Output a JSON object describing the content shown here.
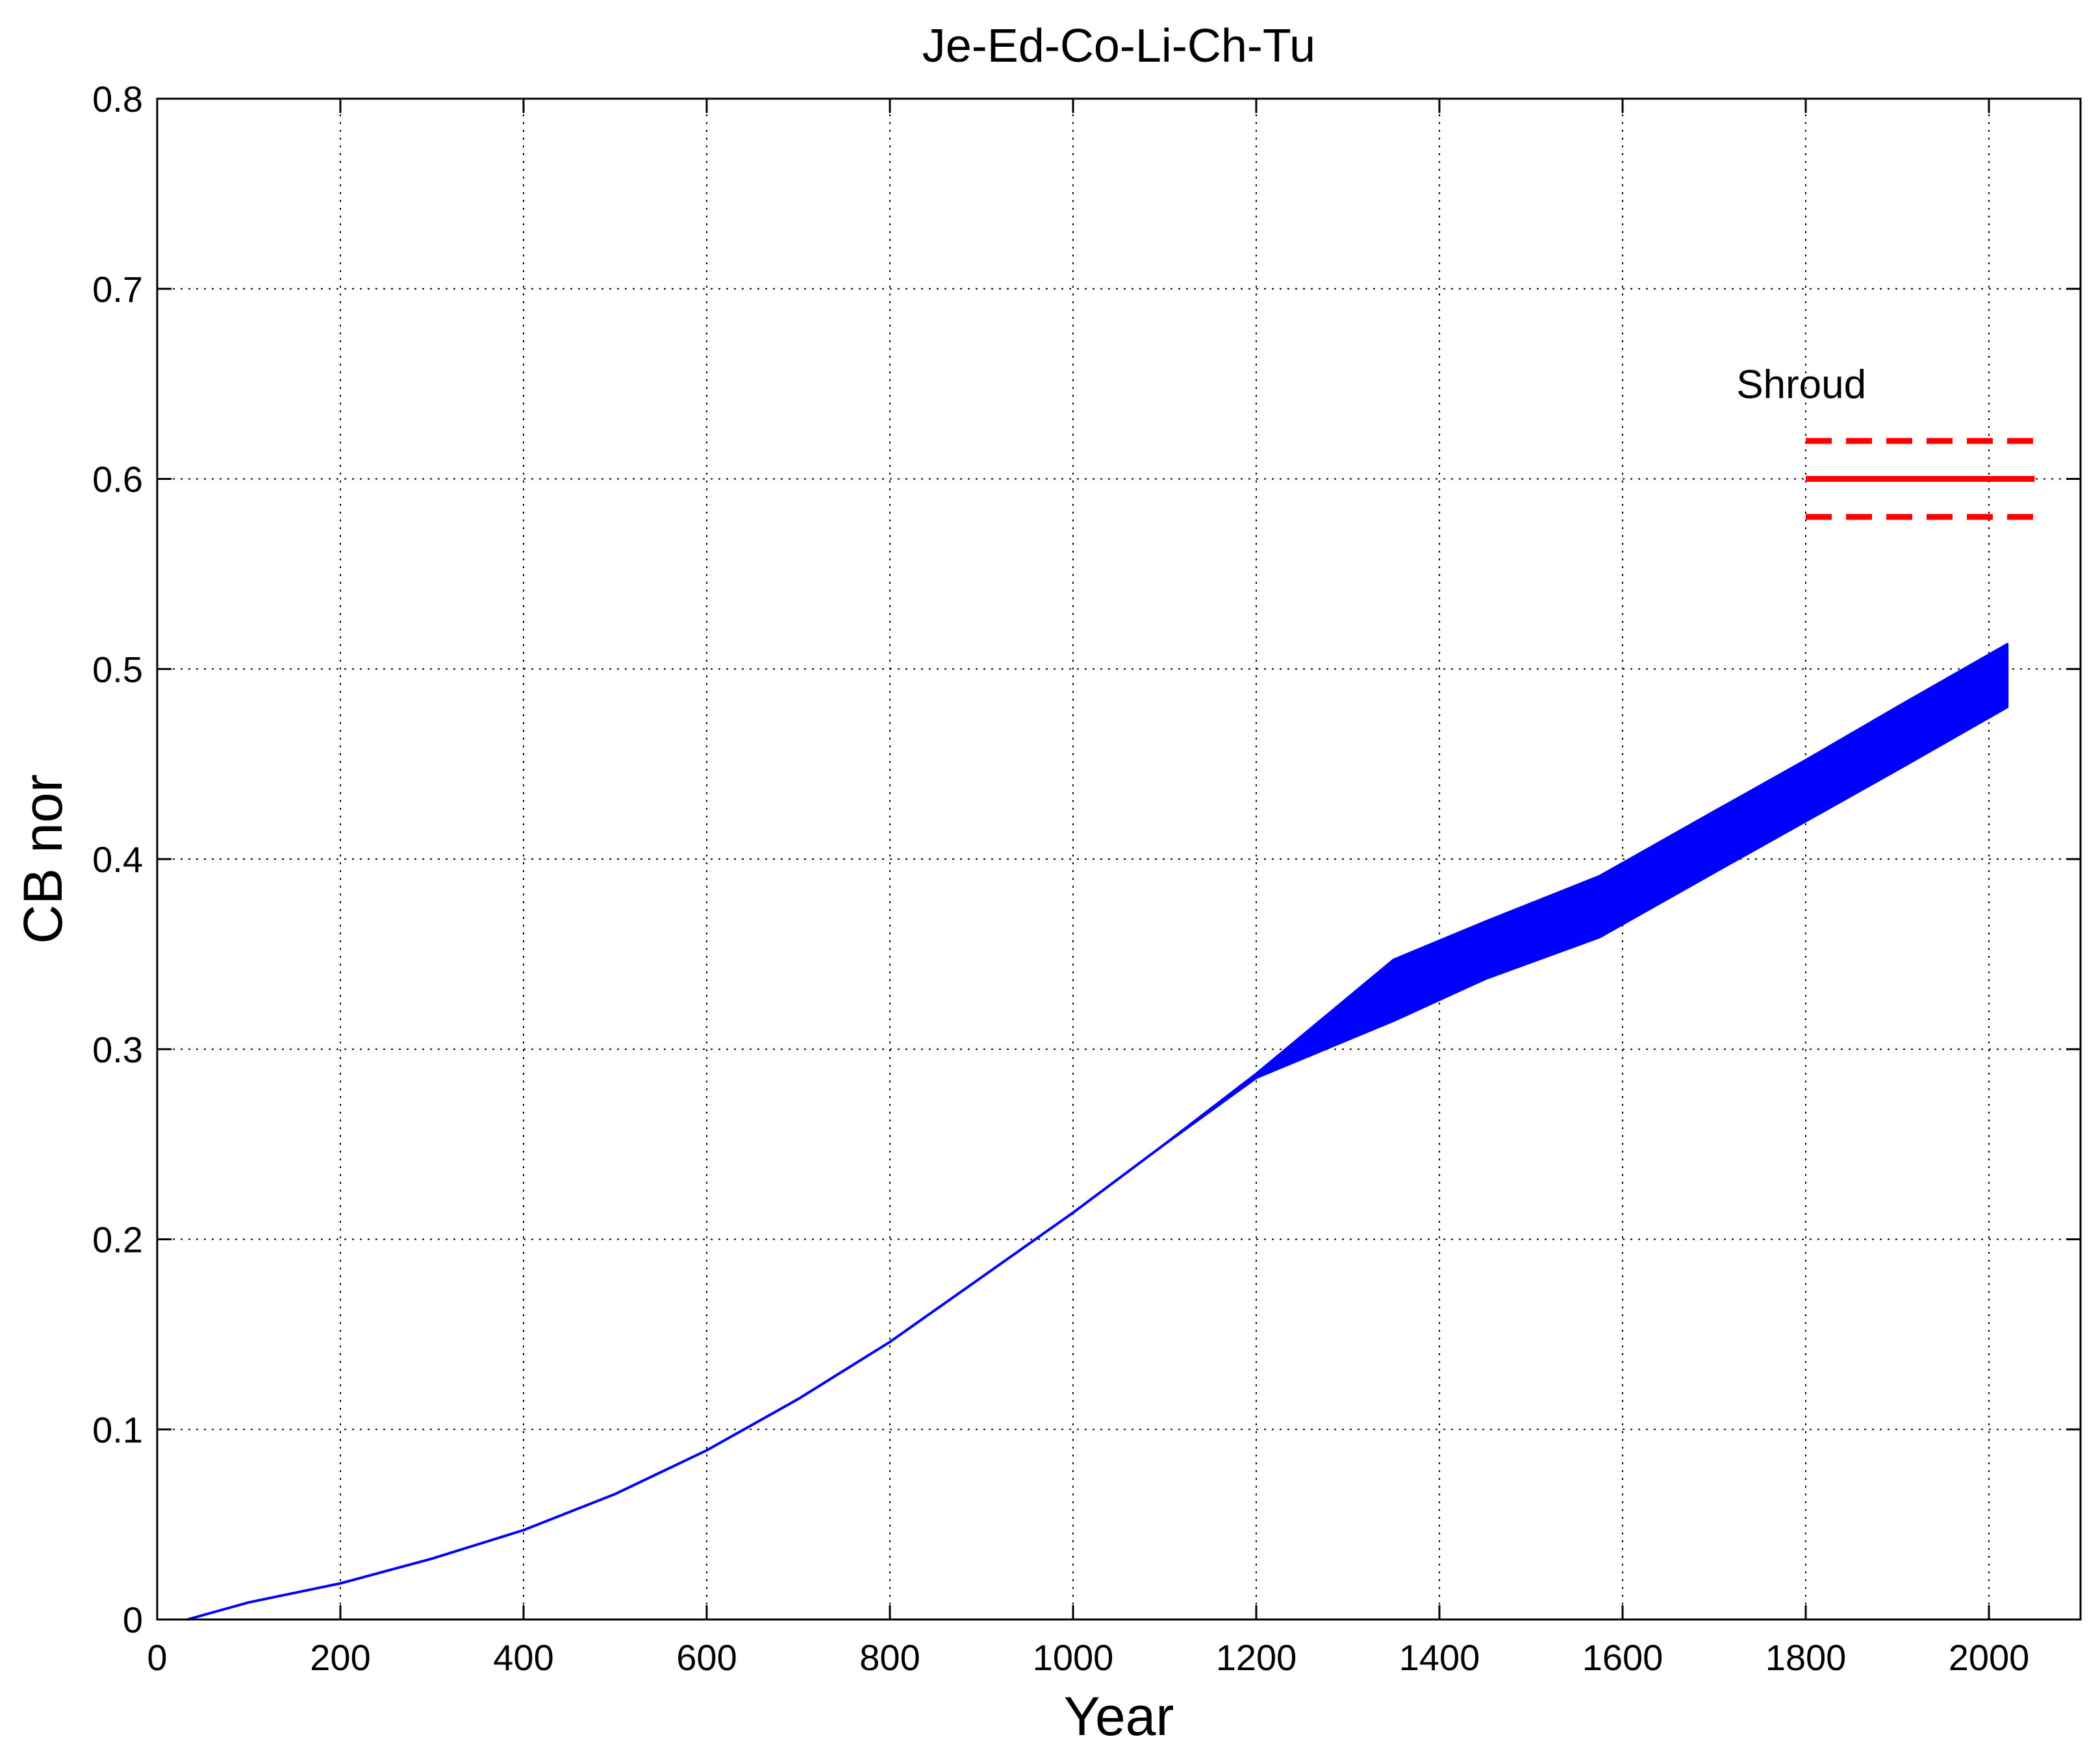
{
  "chart_data": {
    "type": "area",
    "title": "Je-Ed-Co-Li-Ch-Tu",
    "xlabel": "Year",
    "ylabel": "CB nor",
    "xlim": [
      0,
      2100
    ],
    "ylim": [
      0,
      0.8
    ],
    "xticks": [
      0,
      200,
      400,
      600,
      800,
      1000,
      1200,
      1400,
      1600,
      1800,
      2000
    ],
    "yticks": [
      0,
      0.1,
      0.2,
      0.3,
      0.4,
      0.5,
      0.6,
      0.7,
      0.8
    ],
    "grid": true,
    "series": [
      {
        "color": "#0000ff",
        "x": [
          33,
          100,
          200,
          300,
          400,
          500,
          600,
          700,
          800,
          900,
          1000,
          1100,
          1200,
          1350,
          1450,
          1575,
          1700,
          1800,
          1900,
          2020
        ],
        "upper": [
          0,
          0.009,
          0.019,
          0.032,
          0.047,
          0.066,
          0.089,
          0.116,
          0.146,
          0.18,
          0.214,
          0.25,
          0.287,
          0.347,
          0.367,
          0.391,
          0.425,
          0.452,
          0.48,
          0.513
        ],
        "lower": [
          0,
          0.009,
          0.019,
          0.032,
          0.047,
          0.066,
          0.089,
          0.116,
          0.146,
          0.18,
          0.214,
          0.25,
          0.285,
          0.315,
          0.337,
          0.359,
          0.393,
          0.42,
          0.447,
          0.48
        ]
      }
    ],
    "reference_lines": [
      {
        "y": 0.6,
        "x": [
          1800,
          2050
        ],
        "style": "solid",
        "color": "#ff0000"
      },
      {
        "y": 0.62,
        "x": [
          1800,
          2050
        ],
        "style": "dashed",
        "color": "#ff0000"
      },
      {
        "y": 0.58,
        "x": [
          1800,
          2050
        ],
        "style": "dashed",
        "color": "#ff0000"
      }
    ],
    "annotations": [
      {
        "text": "Shroud",
        "x": 1820,
        "y": 0.65
      }
    ]
  }
}
